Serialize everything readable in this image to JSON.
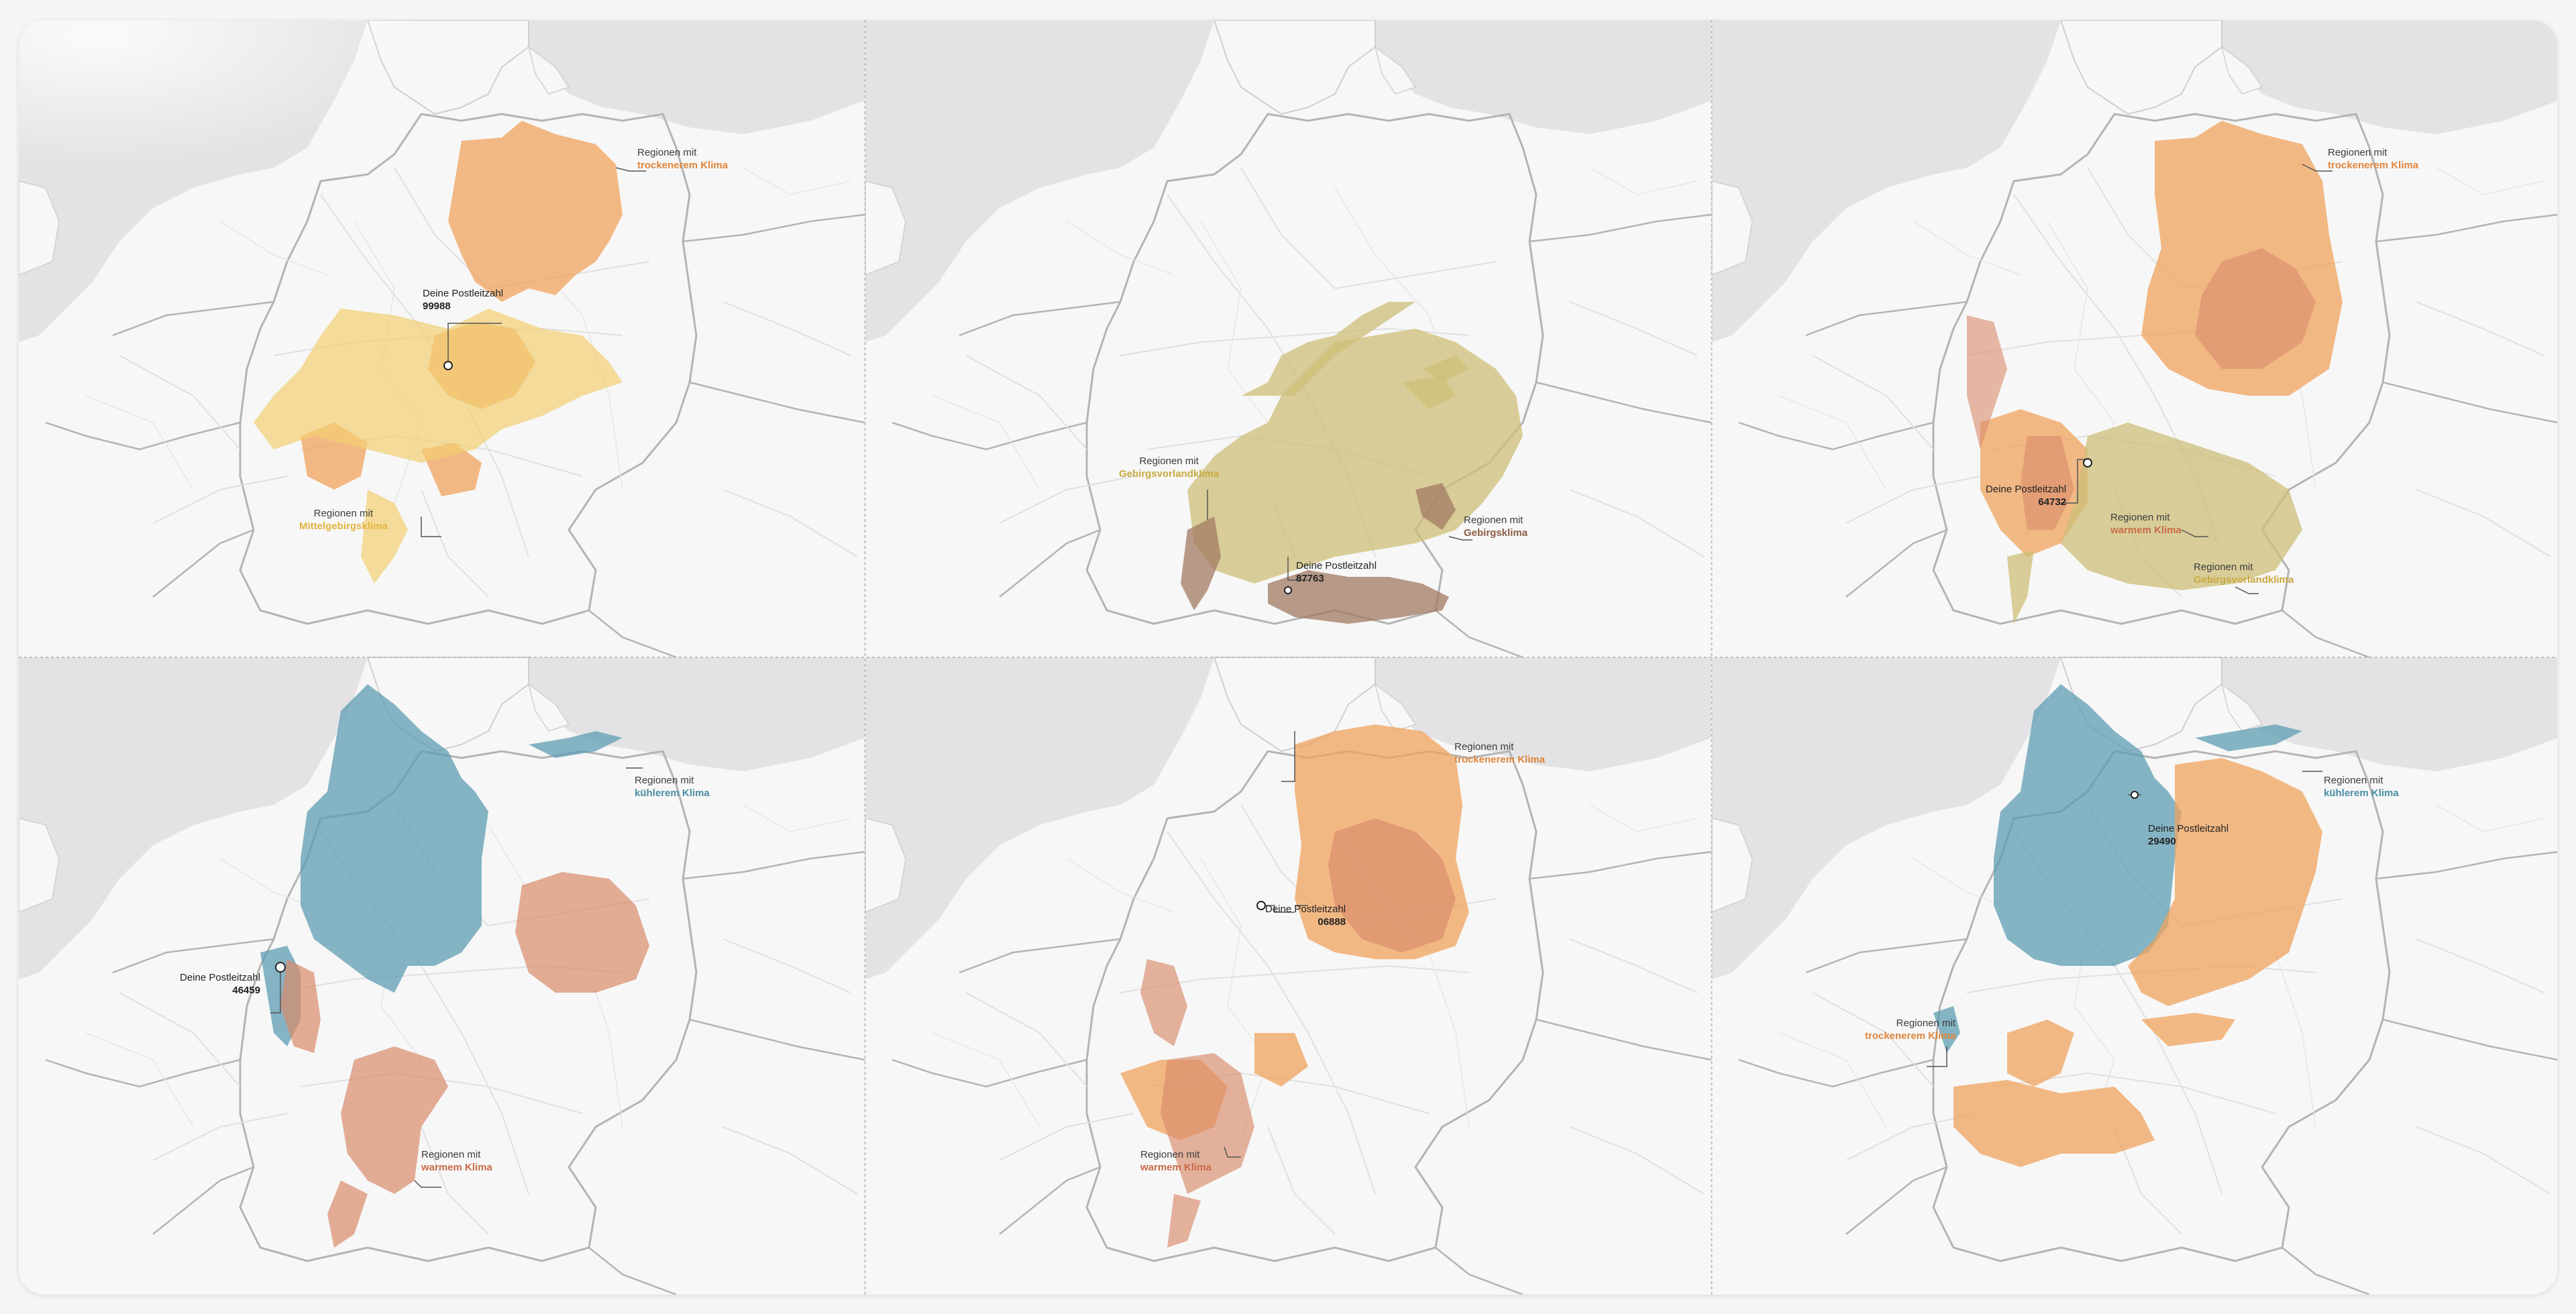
{
  "colors": {
    "drier": "#f0a35e",
    "warmer": "#d98a6a",
    "cooler": "#5e9eb2",
    "low_mountain": "#f2cf72",
    "foothills": "#cdbf78",
    "mountain": "#a27a62",
    "land": "#f7f7f7",
    "water": "#e3e3e6",
    "border": "#b4b4b4"
  },
  "panels": [
    {
      "postcode_caption": "Deine Postleitzahl",
      "postcode": "99988",
      "regions": [
        {
          "line1": "Regionen mit",
          "highlight": "trockenerem Klima",
          "color_key": "drier"
        },
        {
          "line1": "Regionen mit",
          "highlight": "Mittelgebirgsklima",
          "color_key": "low_mountain"
        }
      ]
    },
    {
      "postcode_caption": "Deine Postleitzahl",
      "postcode": "87763",
      "regions": [
        {
          "line1": "Regionen mit",
          "highlight": "Gebirgsvorlandklima",
          "color_key": "foothills"
        },
        {
          "line1": "Regionen mit",
          "highlight": "Gebirgsklima",
          "color_key": "mountain"
        }
      ]
    },
    {
      "postcode_caption": "Deine Postleitzahl",
      "postcode": "64732",
      "regions": [
        {
          "line1": "Regionen mit",
          "highlight": "trockenerem Klima",
          "color_key": "drier"
        },
        {
          "line1": "Regionen mit",
          "highlight": "warmem Klima",
          "color_key": "warmer"
        },
        {
          "line1": "Regionen mit",
          "highlight": "Gebirgsvorlandklima",
          "color_key": "foothills"
        }
      ]
    },
    {
      "postcode_caption": "Deine Postleitzahl",
      "postcode": "46459",
      "regions": [
        {
          "line1": "Regionen mit",
          "highlight": "kühlerem Klima",
          "color_key": "cooler"
        },
        {
          "line1": "Regionen mit",
          "highlight": "warmem Klima",
          "color_key": "warmer"
        }
      ]
    },
    {
      "postcode_caption": "Deine Postleitzahl",
      "postcode": "06888",
      "regions": [
        {
          "line1": "Regionen mit",
          "highlight": "trockenerem Klima",
          "color_key": "drier"
        },
        {
          "line1": "Regionen mit",
          "highlight": "warmem Klima",
          "color_key": "warmer"
        }
      ]
    },
    {
      "postcode_caption": "Deine Postleitzahl",
      "postcode": "29490",
      "regions": [
        {
          "line1": "Regionen mit",
          "highlight": "kühlerem Klima",
          "color_key": "cooler"
        },
        {
          "line1": "Regionen mit",
          "highlight": "trockenerem Klima",
          "color_key": "drier"
        }
      ]
    }
  ]
}
